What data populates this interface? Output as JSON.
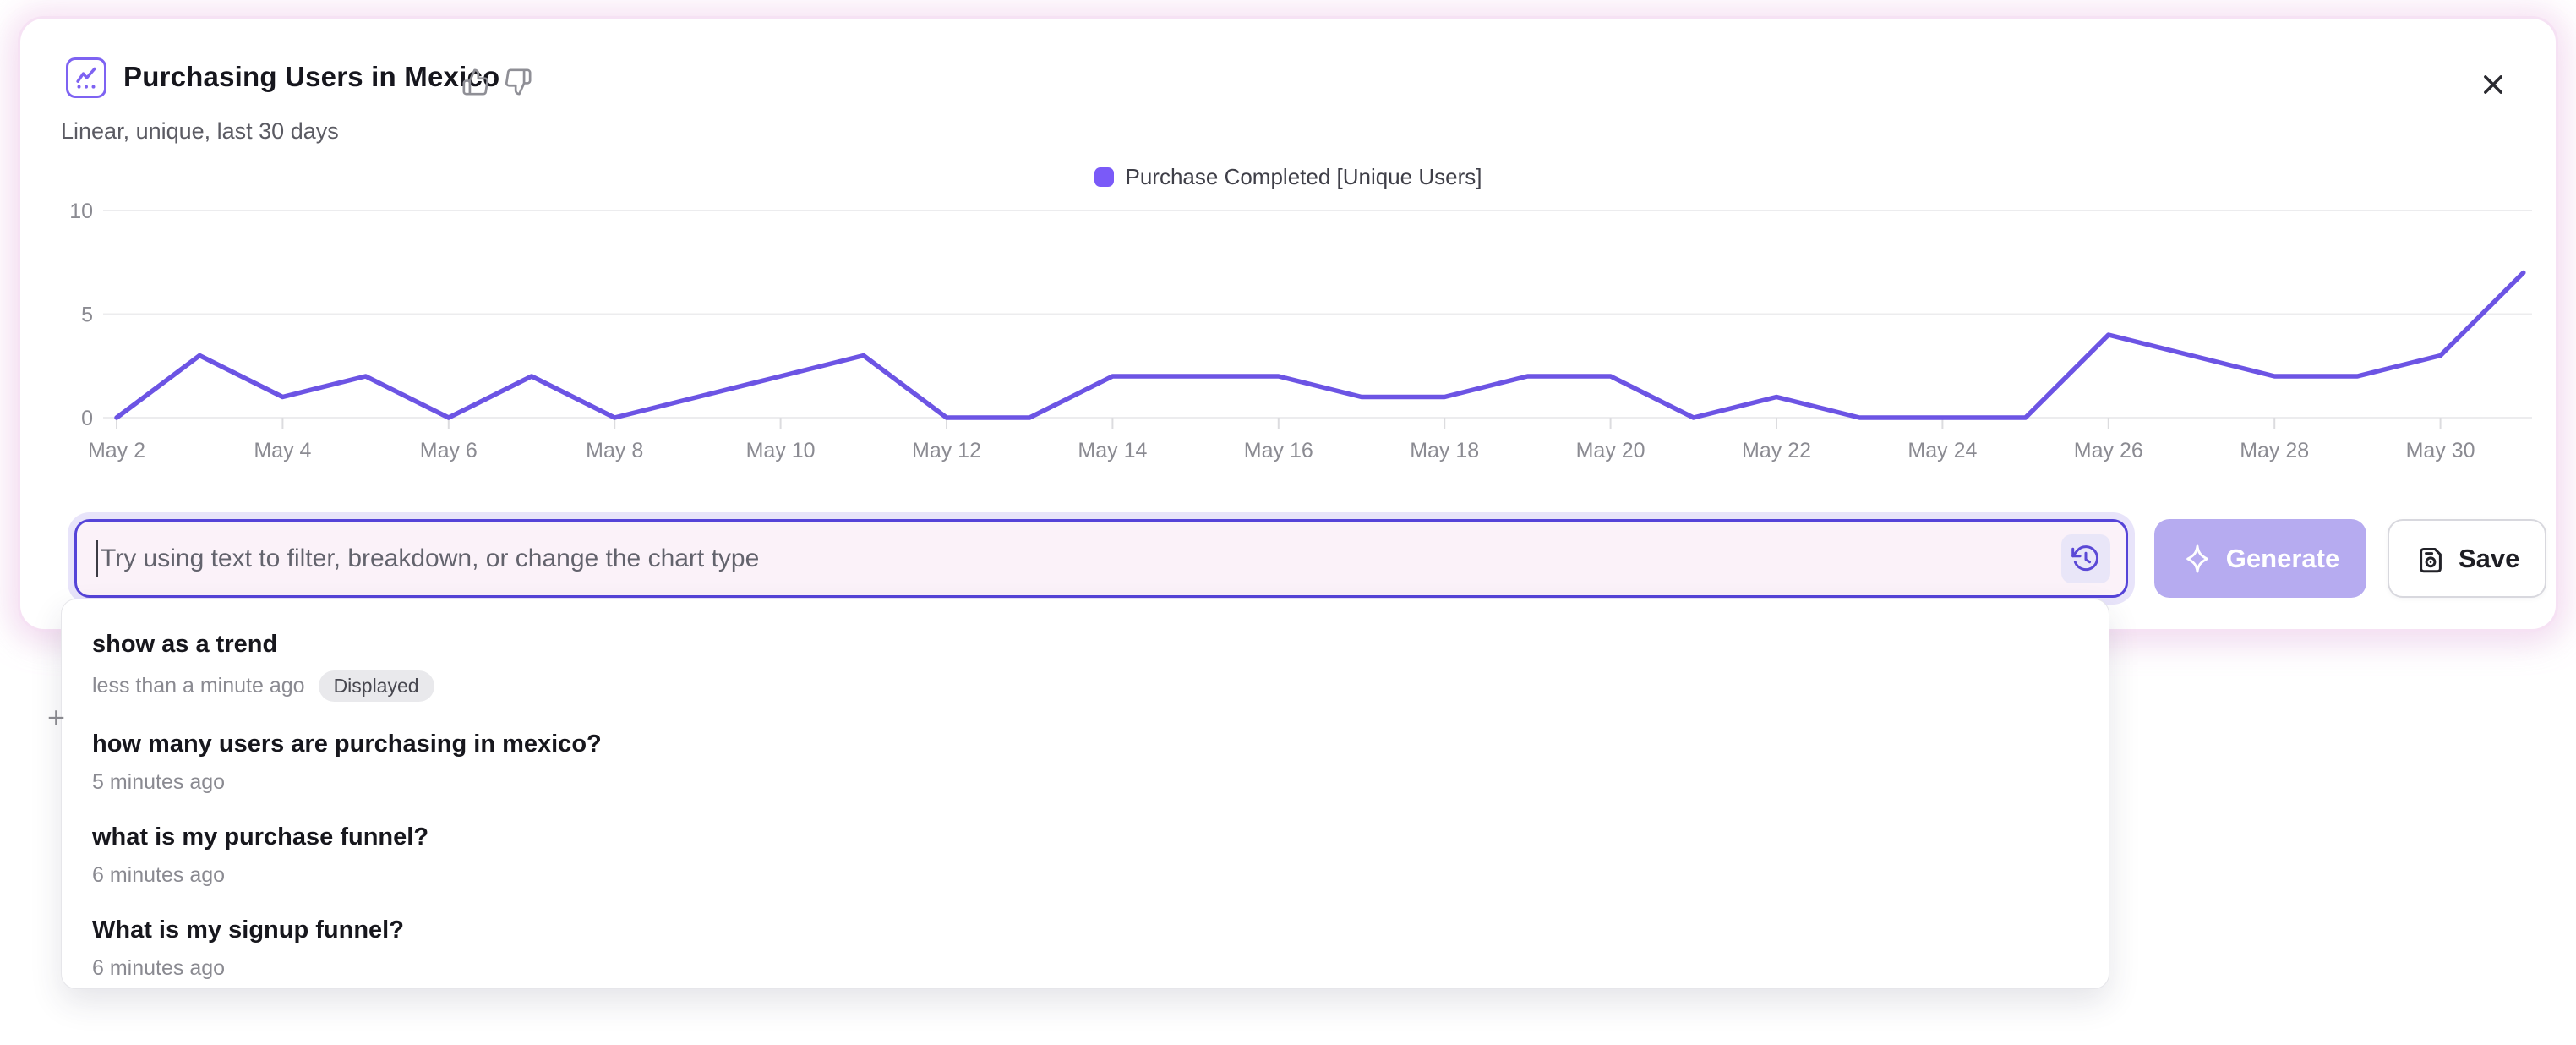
{
  "header": {
    "title": "Purchasing Users in Mexico",
    "subtitle": "Linear, unique, last 30 days"
  },
  "legend": {
    "label": "Purchase Completed [Unique Users]"
  },
  "chart_data": {
    "type": "line",
    "title": "Purchasing Users in Mexico",
    "categories": [
      "May 2",
      "May 3",
      "May 4",
      "May 5",
      "May 6",
      "May 7",
      "May 8",
      "May 9",
      "May 10",
      "May 11",
      "May 12",
      "May 13",
      "May 14",
      "May 15",
      "May 16",
      "May 17",
      "May 18",
      "May 19",
      "May 20",
      "May 21",
      "May 22",
      "May 23",
      "May 24",
      "May 25",
      "May 26",
      "May 27",
      "May 28",
      "May 29",
      "May 30",
      "May 31"
    ],
    "series": [
      {
        "name": "Purchase Completed [Unique Users]",
        "values": [
          0,
          3,
          1,
          2,
          0,
          2,
          0,
          1,
          2,
          3,
          0,
          0,
          2,
          2,
          2,
          1,
          1,
          2,
          2,
          0,
          1,
          0,
          0,
          0,
          4,
          3,
          2,
          2,
          3,
          7
        ]
      }
    ],
    "x_tick_labels_shown": [
      "May 2",
      "May 4",
      "May 6",
      "May 8",
      "May 10",
      "May 12",
      "May 14",
      "May 16",
      "May 18",
      "May 20",
      "May 22",
      "May 24",
      "May 26",
      "May 28",
      "May 30"
    ],
    "yticks": [
      0,
      5,
      10
    ],
    "ylim": [
      0,
      10
    ],
    "grid": true,
    "legend_position": "top-center",
    "line_color": "#6c54e4"
  },
  "prompt": {
    "placeholder": "Try using text to filter, breakdown, or change the chart type"
  },
  "actions": {
    "generate_label": "Generate",
    "save_label": "Save"
  },
  "history": {
    "items": [
      {
        "title": "show as a trend",
        "time": "less than a minute ago",
        "badge": "Displayed"
      },
      {
        "title": "how many users are purchasing in mexico?",
        "time": "5 minutes ago",
        "badge": ""
      },
      {
        "title": "what is my purchase funnel?",
        "time": "6 minutes ago",
        "badge": ""
      },
      {
        "title": "What is my signup funnel?",
        "time": "6 minutes ago",
        "badge": ""
      }
    ]
  },
  "misc": {
    "stray_plus": "+"
  },
  "colors": {
    "accent_line": "#6c54e4",
    "legend_swatch": "#7a5af8",
    "input_border": "#5544d8",
    "input_bg": "#fbf2f9",
    "generate_bg": "#b6abf0",
    "badge_bg": "#e9e9ec",
    "card_glow": "#f3d2ec"
  }
}
